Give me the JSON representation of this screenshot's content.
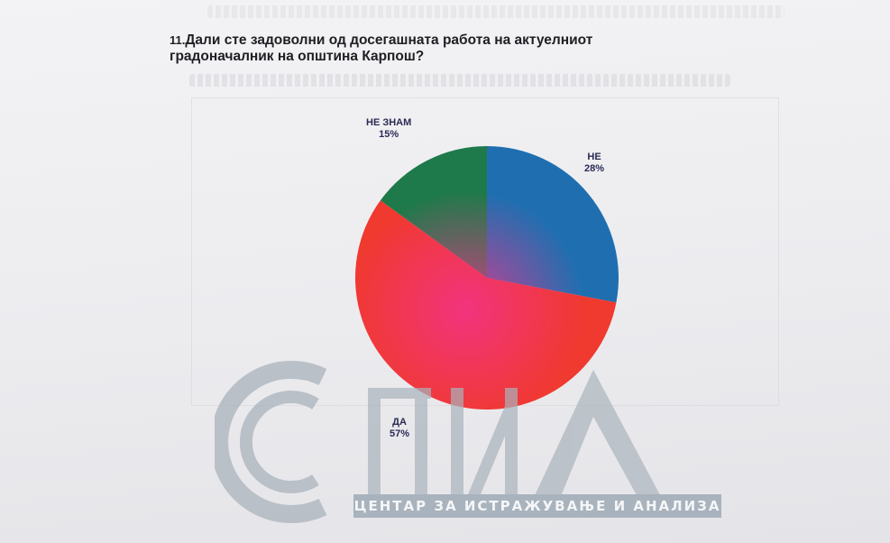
{
  "question": {
    "number": "11.",
    "text_line1": "Дали сте задоволни од досегашната работа на актуелниот",
    "text_line2": "градоначалник на општина Карпош?"
  },
  "chart_data": {
    "type": "pie",
    "slices": [
      {
        "label": "НЕ",
        "value": 28,
        "value_label": "28%",
        "color": "#1f6fb0"
      },
      {
        "label": "ДА",
        "value": 57,
        "value_label": "57%",
        "color": "#f0392f"
      },
      {
        "label": "НЕ ЗНАМ",
        "value": 15,
        "value_label": "15%",
        "color": "#1e7a4a"
      }
    ]
  },
  "watermark": {
    "organization": "ЦЕНТАР ЗА ИСТРАЖУВАЊЕ И АНАЛИЗА"
  }
}
